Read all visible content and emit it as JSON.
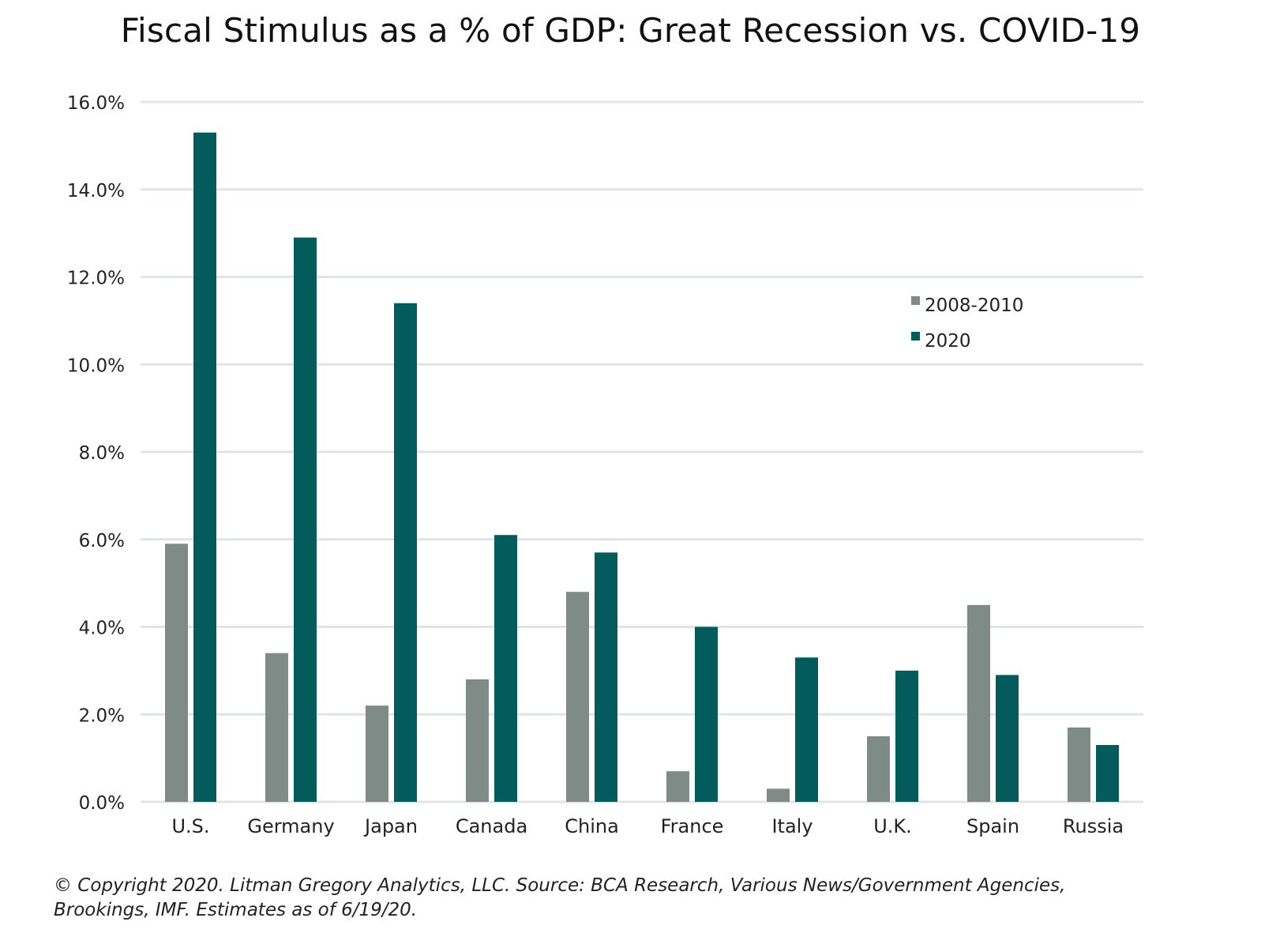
{
  "chart_data": {
    "type": "bar",
    "title": "Fiscal Stimulus as a % of GDP: Great Recession vs. COVID-19",
    "xlabel": "",
    "ylabel": "",
    "categories": [
      "U.S.",
      "Germany",
      "Japan",
      "Canada",
      "China",
      "France",
      "Italy",
      "U.K.",
      "Spain",
      "Russia"
    ],
    "series": [
      {
        "name": "2008-2010",
        "color": "#7f8b86",
        "values": [
          5.9,
          3.4,
          2.2,
          2.8,
          4.8,
          0.7,
          0.3,
          1.5,
          4.5,
          1.7
        ]
      },
      {
        "name": "2020",
        "color": "#045b5c",
        "values": [
          15.3,
          12.9,
          11.4,
          6.1,
          5.7,
          4.0,
          3.3,
          3.0,
          2.9,
          1.3
        ]
      }
    ],
    "ylim": [
      0,
      16
    ],
    "yticks": [
      "0.0%",
      "2.0%",
      "4.0%",
      "6.0%",
      "8.0%",
      "10.0%",
      "12.0%",
      "14.0%",
      "16.0%"
    ],
    "grid": true,
    "legend_position": "top-right"
  },
  "footnote": "© Copyright 2020. Litman Gregory Analytics, LLC. Source: BCA Research, Various News/Government Agencies, Brookings, IMF. Estimates as of 6/19/20."
}
